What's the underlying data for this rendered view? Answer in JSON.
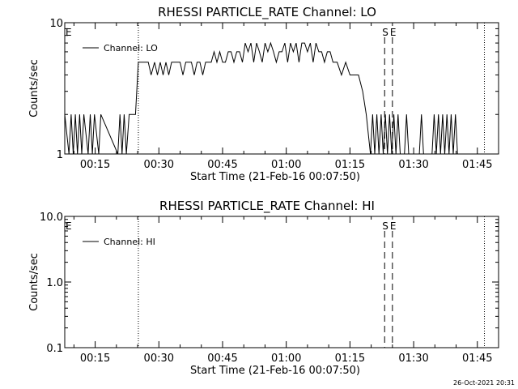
{
  "chart_data": [
    {
      "type": "line",
      "title": "RHESSI PARTICLE_RATE Channel: LO",
      "xlabel": "Start Time (21-Feb-16 00:07:50)",
      "ylabel": "Counts/sec",
      "yscale": "log",
      "ylim": [
        1,
        10
      ],
      "yticks": [
        1,
        10
      ],
      "ytick_labels": [
        "1",
        "10"
      ],
      "xlim": [
        "00:07:50",
        "01:50:00"
      ],
      "xticks": [
        "00:15",
        "00:30",
        "00:45",
        "01:00",
        "01:15",
        "01:30",
        "01:45"
      ],
      "legend_position": "top-left",
      "grid": false,
      "series": [
        {
          "name": "Channel: LO",
          "color": "#000000",
          "x": [
            "00:07:50",
            "00:08:50",
            "00:09:20",
            "00:09:50",
            "00:10:20",
            "00:10:50",
            "00:11:20",
            "00:11:50",
            "00:12:20",
            "00:13:20",
            "00:13:50",
            "00:14:20",
            "00:14:50",
            "00:15:50",
            "00:16:20",
            "00:20:20",
            "00:20:50",
            "00:21:20",
            "00:21:50",
            "00:22:20",
            "00:23:00",
            "00:24:30",
            "00:25:10",
            "00:26:30",
            "00:27:30",
            "00:28:10",
            "00:29:00",
            "00:29:40",
            "00:30:20",
            "00:31:00",
            "00:31:40",
            "00:32:20",
            "00:33:00",
            "00:33:40",
            "00:34:20",
            "00:35:00",
            "00:35:40",
            "00:36:20",
            "00:37:00",
            "00:37:40",
            "00:38:20",
            "00:39:00",
            "00:39:40",
            "00:40:20",
            "00:41:00",
            "00:41:40",
            "00:42:20",
            "00:43:00",
            "00:43:40",
            "00:44:20",
            "00:45:00",
            "00:45:40",
            "00:46:20",
            "00:47:00",
            "00:47:40",
            "00:48:20",
            "00:49:00",
            "00:49:40",
            "00:50:20",
            "00:51:00",
            "00:51:40",
            "00:52:20",
            "00:53:00",
            "00:53:40",
            "00:54:20",
            "00:55:00",
            "00:55:40",
            "00:56:20",
            "00:57:00",
            "00:57:40",
            "00:58:20",
            "00:59:00",
            "00:59:40",
            "01:00:20",
            "01:01:00",
            "01:01:40",
            "01:02:20",
            "01:03:00",
            "01:03:40",
            "01:04:20",
            "01:05:00",
            "01:05:40",
            "01:06:20",
            "01:07:00",
            "01:07:40",
            "01:08:20",
            "01:09:00",
            "01:09:40",
            "01:10:20",
            "01:11:00",
            "01:12:00",
            "01:13:00",
            "01:14:00",
            "01:15:00",
            "01:16:00",
            "01:17:00",
            "01:18:00",
            "01:18:50",
            "01:19:50",
            "01:20:20",
            "01:20:50",
            "01:21:20",
            "01:21:50",
            "01:22:20",
            "01:22:50",
            "01:23:20",
            "01:23:50",
            "01:24:20",
            "01:24:50",
            "01:25:20",
            "01:25:50",
            "01:26:20",
            "01:26:50",
            "01:27:20",
            "01:27:50",
            "01:28:20",
            "01:28:50",
            "01:29:20",
            "01:29:50",
            "01:30:20",
            "01:30:50",
            "01:31:20",
            "01:31:50",
            "01:32:20",
            "01:32:50",
            "01:33:20",
            "01:33:50",
            "01:34:20",
            "01:34:50",
            "01:35:20",
            "01:35:50",
            "01:36:20",
            "01:36:50",
            "01:37:20",
            "01:37:50",
            "01:38:20",
            "01:38:50",
            "01:39:20",
            "01:39:50",
            "01:40:20",
            "01:41:00"
          ],
          "y": [
            2,
            1,
            2,
            1,
            2,
            1,
            2,
            1,
            2,
            1,
            2,
            1,
            2,
            1,
            2,
            1,
            2,
            1,
            2,
            1,
            2,
            2,
            5,
            5,
            5,
            4,
            5,
            4,
            5,
            4,
            5,
            4,
            5,
            5,
            5,
            5,
            4,
            5,
            5,
            5,
            4,
            5,
            5,
            4,
            5,
            5,
            5,
            6,
            5,
            6,
            5,
            5,
            6,
            6,
            5,
            6,
            6,
            5,
            7,
            6,
            7,
            5,
            7,
            6,
            5,
            7,
            6,
            7,
            6,
            5,
            6,
            6,
            7,
            5,
            7,
            6,
            7,
            5,
            7,
            7,
            6,
            7,
            5,
            7,
            6,
            6,
            5,
            6,
            6,
            5,
            5,
            4,
            5,
            4,
            4,
            4,
            3,
            2,
            1,
            2,
            1,
            2,
            1,
            2,
            1,
            2,
            1,
            2,
            1,
            2,
            1,
            2,
            1,
            1,
            1,
            2,
            1,
            1,
            1,
            1,
            1,
            1,
            2,
            1,
            1,
            1,
            1,
            1,
            2,
            1,
            2,
            1,
            2,
            1,
            2,
            1,
            2,
            1,
            2,
            1,
            1
          ],
          "y_note_floor": "values of 1 drawn at axis floor"
        }
      ],
      "annotations": [
        {
          "label": "E",
          "time": "00:07:50",
          "style": "text"
        },
        {
          "label": "",
          "time": "00:25:10",
          "style": "dotted"
        },
        {
          "label": "S",
          "time": "01:23:10",
          "style": "dashed"
        },
        {
          "label": "E",
          "time": "01:25:00",
          "style": "dashed"
        },
        {
          "label": "",
          "time": "01:46:40",
          "style": "dotted"
        }
      ]
    },
    {
      "type": "line",
      "title": "RHESSI PARTICLE_RATE Channel: HI",
      "xlabel": "Start Time (21-Feb-16 00:07:50)",
      "ylabel": "Counts/sec",
      "yscale": "log",
      "ylim": [
        0.1,
        10.0
      ],
      "yticks": [
        0.1,
        1.0,
        10.0
      ],
      "ytick_labels": [
        "0.1",
        "1.0",
        "10.0"
      ],
      "xlim": [
        "00:07:50",
        "01:50:00"
      ],
      "xticks": [
        "00:15",
        "00:30",
        "00:45",
        "01:00",
        "01:15",
        "01:30",
        "01:45"
      ],
      "legend_position": "top-left",
      "grid": false,
      "series": [
        {
          "name": "Channel: HI",
          "color": "#000000",
          "x": [],
          "y": []
        }
      ],
      "annotations": [
        {
          "label": "E",
          "time": "00:07:50",
          "style": "text"
        },
        {
          "label": "",
          "time": "00:25:10",
          "style": "dotted"
        },
        {
          "label": "S",
          "time": "01:23:10",
          "style": "dashed"
        },
        {
          "label": "E",
          "time": "01:25:00",
          "style": "dashed"
        },
        {
          "label": "",
          "time": "01:46:40",
          "style": "dotted"
        }
      ]
    }
  ],
  "footer": {
    "timestamp": "26-Oct-2021 20:31"
  }
}
